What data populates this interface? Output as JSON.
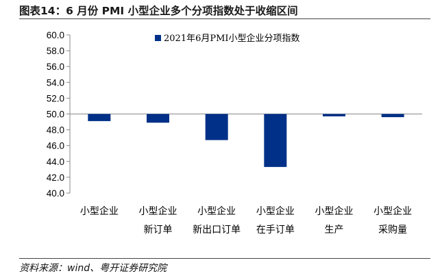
{
  "figure": {
    "title": "图表14：6 月份 PMI 小型企业多个分项指数处于收缩区间",
    "source": "资料来源：wind、粤开证券研究院"
  },
  "colors": {
    "bar": "#003087",
    "axis": "#888888",
    "text": "#000000"
  },
  "chart_data": {
    "type": "bar",
    "title": "",
    "xlabel": "",
    "ylabel": "",
    "ylim": [
      40.0,
      60.0
    ],
    "yticks": [
      "60.0",
      "58.0",
      "56.0",
      "54.0",
      "52.0",
      "50.0",
      "48.0",
      "46.0",
      "44.0",
      "42.0",
      "40.0"
    ],
    "baseline": 50.0,
    "legend": "2021年6月PMI小型企业分项指数",
    "categories": [
      [
        "小型企业"
      ],
      [
        "小型企业",
        "新订单"
      ],
      [
        "小型企业",
        "新出口订单"
      ],
      [
        "小型企业",
        "在手订单"
      ],
      [
        "小型企业",
        "生产"
      ],
      [
        "小型企业",
        "采购量"
      ]
    ],
    "values": [
      49.1,
      48.9,
      46.7,
      43.3,
      49.7,
      49.6
    ]
  }
}
